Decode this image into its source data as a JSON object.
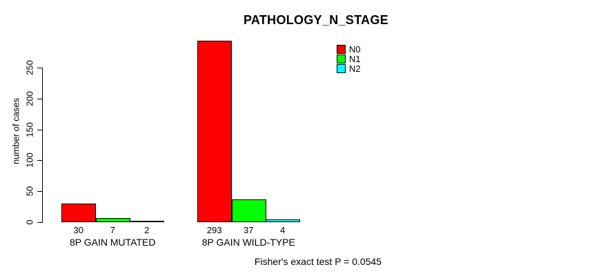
{
  "chart_data": {
    "type": "bar",
    "title": "PATHOLOGY_N_STAGE",
    "ylabel": "number of cases",
    "xlabel": "",
    "categories": [
      "8P GAIN MUTATED",
      "8P GAIN WILD-TYPE"
    ],
    "series": [
      {
        "name": "N0",
        "color": "#ff0000",
        "values": [
          30,
          293
        ]
      },
      {
        "name": "N1",
        "color": "#00ff00",
        "values": [
          7,
          37
        ]
      },
      {
        "name": "N2",
        "color": "#00ffff",
        "values": [
          2,
          4
        ]
      }
    ],
    "bar_value_labels": [
      [
        "30",
        "7",
        "2"
      ],
      [
        "293",
        "37",
        "4"
      ]
    ],
    "yticks": [
      0,
      50,
      100,
      150,
      200,
      250
    ],
    "ylim": [
      0,
      250
    ],
    "grid": false,
    "legend": {
      "position": "top-right",
      "entries": [
        "N0",
        "N1",
        "N2"
      ]
    },
    "annotation": "Fisher's exact test P = 0.0545",
    "colors": {
      "bar_border": "#000000",
      "axis": "#000000",
      "background": "#ffffff"
    }
  }
}
